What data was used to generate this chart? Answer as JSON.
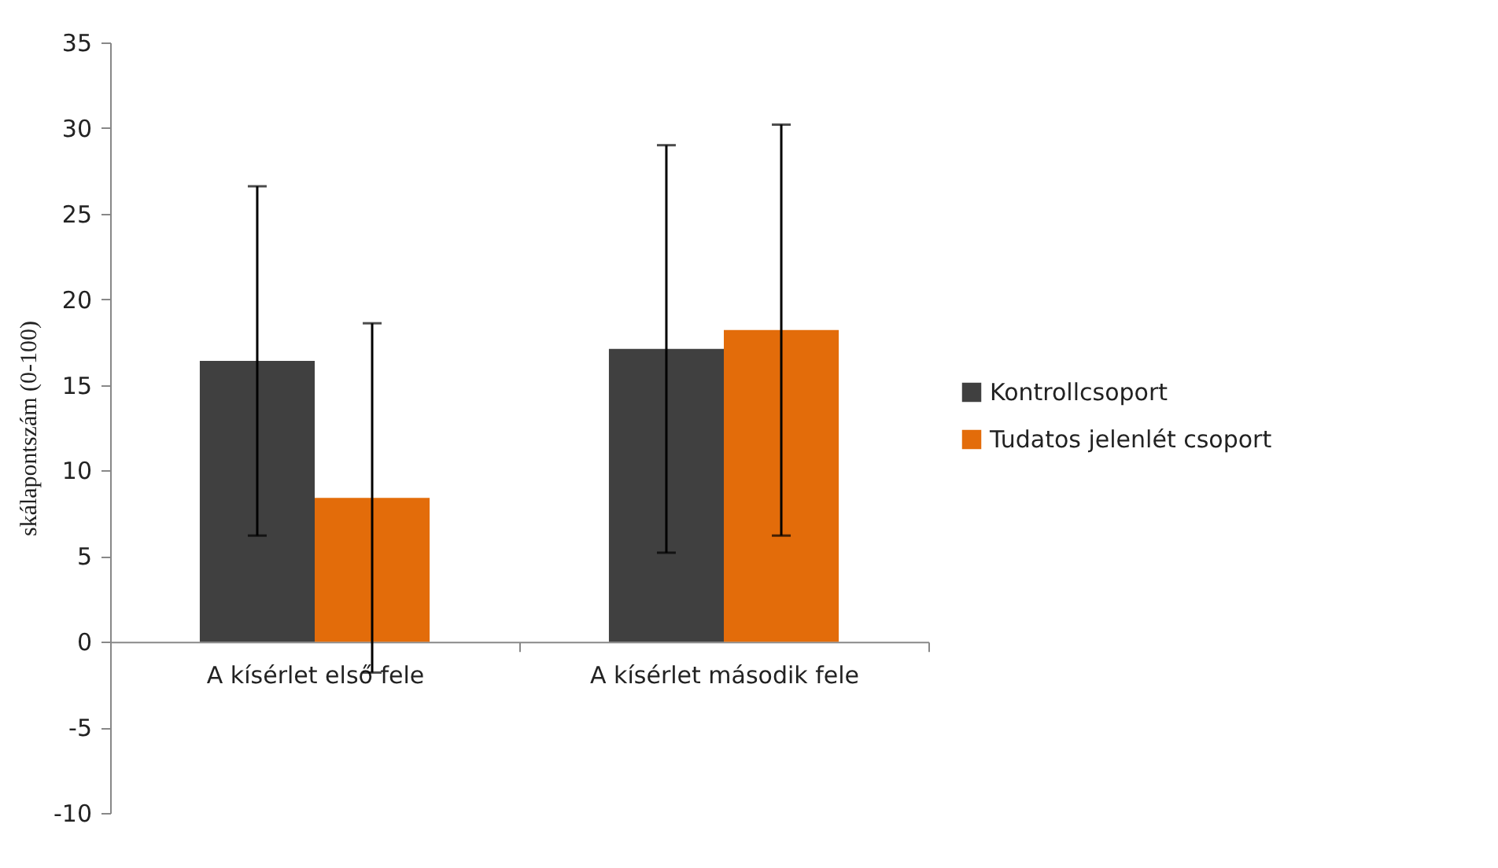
{
  "chart_data": {
    "type": "bar",
    "ylabel": "skálapontszám (0-100)",
    "categories": [
      "A kísérlet első fele",
      "A kísérlet második fele"
    ],
    "series": [
      {
        "name": "Kontrollcsoport",
        "color": "#404040",
        "values": [
          16.4,
          17.1
        ],
        "errors": [
          10.2,
          11.9
        ]
      },
      {
        "name": "Tudatos jelenlét csoport",
        "color": "#e36c0a",
        "values": [
          8.4,
          18.2
        ],
        "errors": [
          10.2,
          12.0
        ]
      }
    ],
    "ylim": [
      -10,
      35
    ],
    "yticks": [
      -10,
      -5,
      0,
      5,
      10,
      15,
      20,
      25,
      30,
      35
    ],
    "grid": false,
    "legend": "right"
  }
}
